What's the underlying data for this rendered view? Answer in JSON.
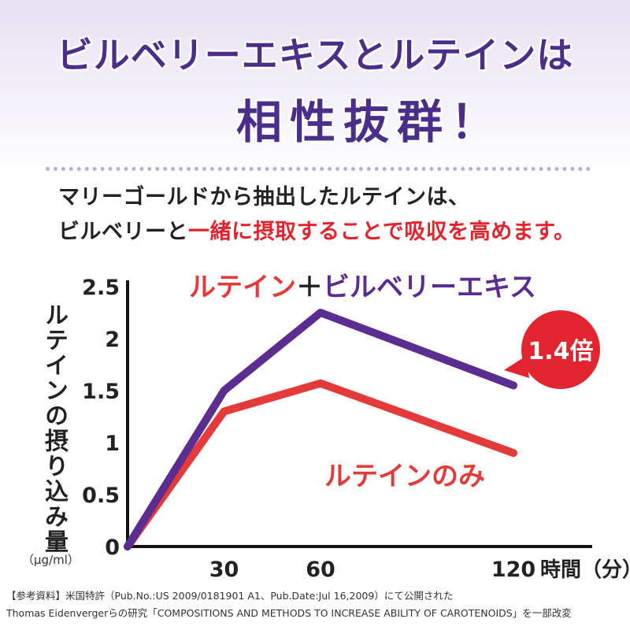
{
  "header": {
    "title_line1": "ビルベリーエキスとルテインは",
    "title_line2": "相性抜群！"
  },
  "lead": {
    "line1": "マリーゴールドから抽出したルテインは、",
    "line2_part1": "ビルベリーと",
    "line2_part2": "一緒に摂取することで吸収を高めます。"
  },
  "badge": {
    "label": "1.4倍",
    "color": "#e1242d"
  },
  "footer": {
    "line1": "【参考資料】米国特許（Pub.No.:US 2009/0181901 A1、Pub.Date:Jul 16,2009）にて公開された",
    "line2": "Thomas Eidenvergerらの研究「COMPOSITIONS AND METHODS TO INCREASE ABILITY OF CAROTENOIDS」を一部改変"
  },
  "chart_data": {
    "type": "line",
    "ylabel": "ルテインの摂り込み量",
    "yunit": "（μg/ml）",
    "xlabel": "時間（分）",
    "xlim": [
      0,
      120
    ],
    "ylim": [
      0,
      2.5
    ],
    "x_ticks": [
      30,
      60,
      120
    ],
    "y_ticks": [
      "0",
      "0.5",
      "1",
      "1.5",
      "2",
      "2.5"
    ],
    "grid": false,
    "series": [
      {
        "name": "ルテイン＋ビルベリーエキス",
        "name_part1": "ルテイン",
        "name_part2": "＋",
        "name_part3": "ビルベリーエキス",
        "color": "#5b2d91",
        "x": [
          0,
          30,
          60,
          120
        ],
        "y": [
          0,
          1.5,
          2.25,
          1.55
        ]
      },
      {
        "name": "ルテインのみ",
        "color": "#e43a3a",
        "x": [
          0,
          30,
          60,
          120
        ],
        "y": [
          0,
          1.3,
          1.57,
          0.9
        ]
      }
    ]
  }
}
